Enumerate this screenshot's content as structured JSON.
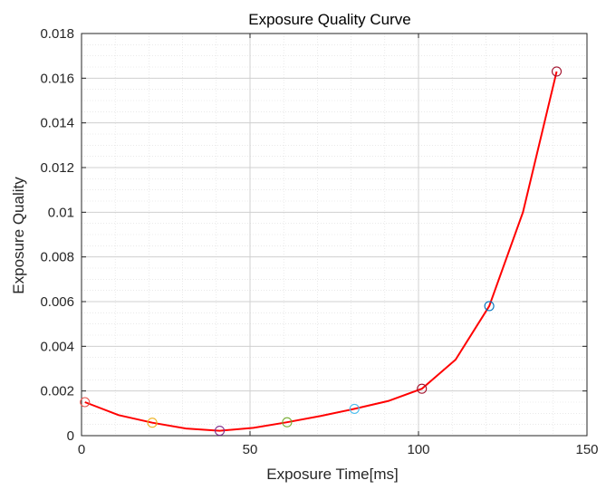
{
  "chart_data": {
    "type": "line",
    "title": "Exposure Quality Curve",
    "xlabel": "Exposure Time[ms]",
    "ylabel": "Exposure Quality",
    "xlim": [
      0,
      150
    ],
    "ylim": [
      0,
      0.018
    ],
    "x_ticks": [
      0,
      50,
      100,
      150
    ],
    "x_tick_labels": [
      "0",
      "50",
      "100",
      "150"
    ],
    "y_ticks": [
      0,
      0.002,
      0.004,
      0.006,
      0.008,
      0.01,
      0.012,
      0.014,
      0.016,
      0.018
    ],
    "y_tick_labels": [
      "0",
      "0.002",
      "0.004",
      "0.006",
      "0.008",
      "0.01",
      "0.012",
      "0.014",
      "0.016",
      "0.018"
    ],
    "grid": true,
    "minor_grid": true,
    "line_color": "#ff0000",
    "series": [
      {
        "x": [
          1,
          11,
          21,
          31,
          41,
          51,
          61,
          71,
          81,
          91,
          101,
          111,
          121,
          131,
          141
        ],
        "values": [
          0.0015,
          0.00092,
          0.00058,
          0.00032,
          0.00022,
          0.00035,
          0.0006,
          0.00088,
          0.0012,
          0.00155,
          0.0021,
          0.0034,
          0.0058,
          0.01,
          0.0163
        ]
      }
    ],
    "markers": [
      {
        "x": 1,
        "y": 0.0015,
        "color": "#e8534a"
      },
      {
        "x": 21,
        "y": 0.00058,
        "color": "#edb120"
      },
      {
        "x": 41,
        "y": 0.00022,
        "color": "#7e2f8e"
      },
      {
        "x": 61,
        "y": 0.0006,
        "color": "#77ac30"
      },
      {
        "x": 81,
        "y": 0.0012,
        "color": "#4dbeee"
      },
      {
        "x": 101,
        "y": 0.0021,
        "color": "#a2142f"
      },
      {
        "x": 121,
        "y": 0.0058,
        "color": "#0072bd"
      },
      {
        "x": 141,
        "y": 0.0163,
        "color": "#a2142f"
      }
    ]
  }
}
